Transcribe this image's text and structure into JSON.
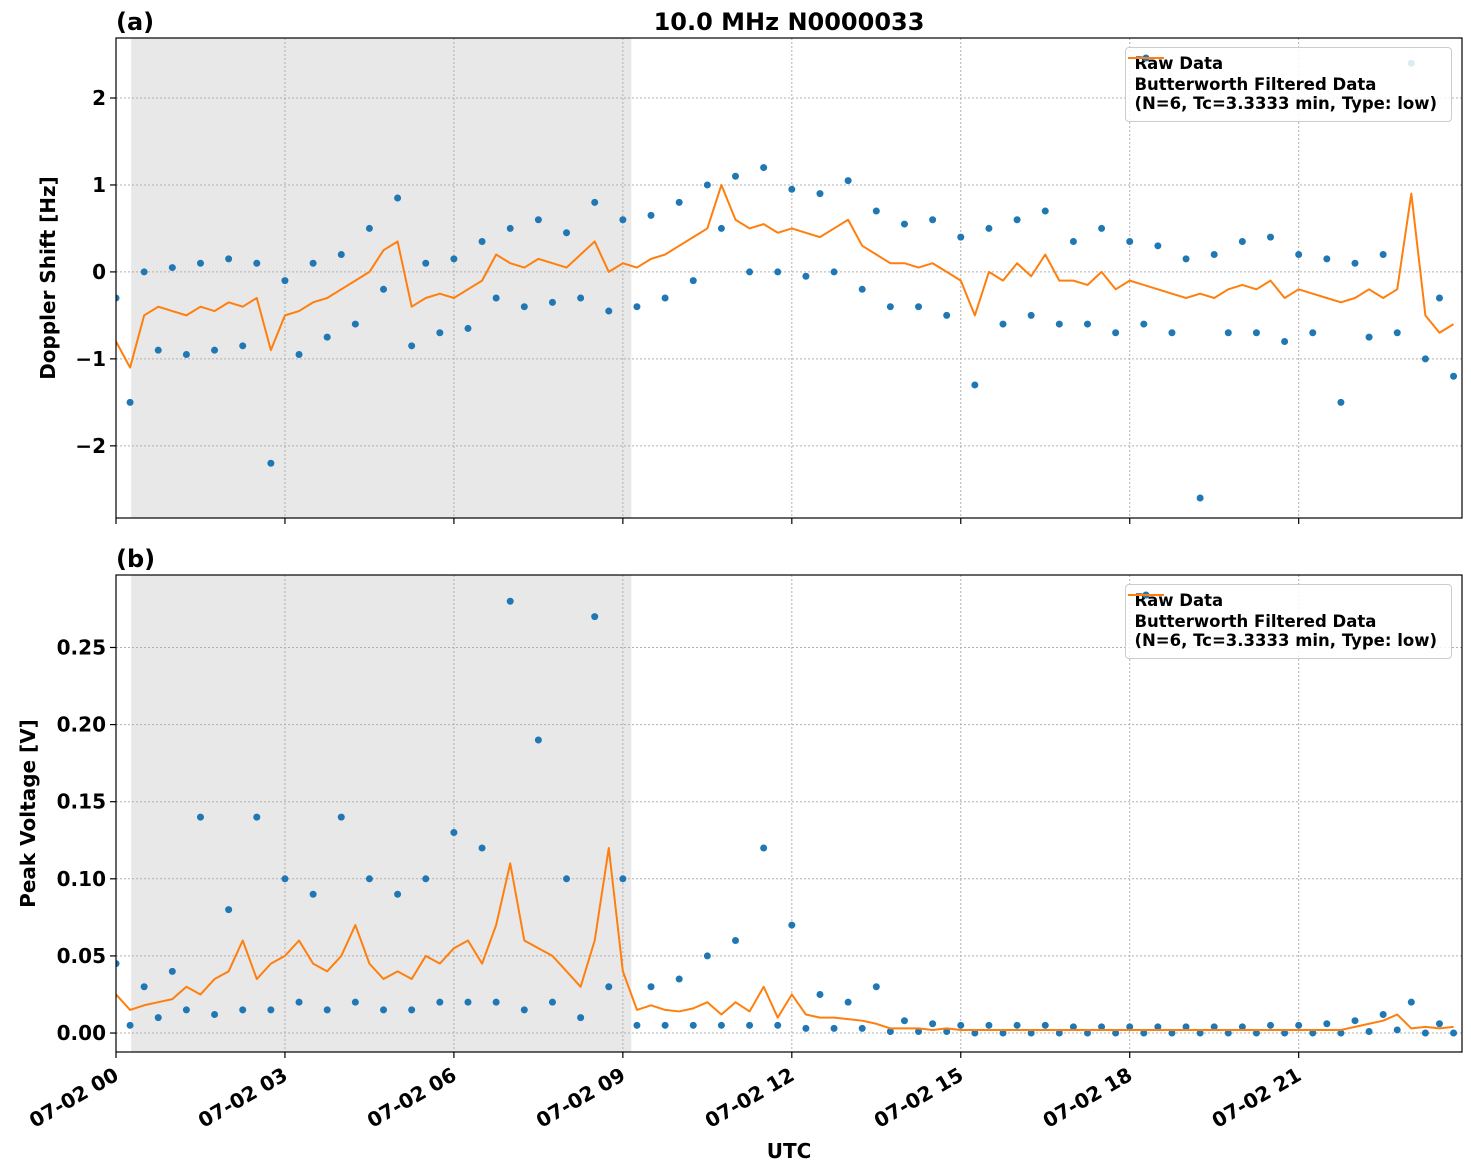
{
  "chart_data": [
    {
      "type": "scatter-line",
      "panel_label": "(a)",
      "title": "10.0 MHz N0000033",
      "ylabel": "Doppler Shift [Hz]",
      "xlim": [
        0,
        23.9
      ],
      "ylim": [
        -2.83,
        2.69
      ],
      "xticks": [
        0,
        3,
        6,
        9,
        12,
        15,
        18,
        21
      ],
      "yticks": [
        {
          "value": -2,
          "label": "−2"
        },
        {
          "value": -1,
          "label": "−1"
        },
        0,
        1,
        2
      ],
      "grid": true,
      "legend": "upper right",
      "shaded_span": [
        0.27,
        9.15
      ],
      "shade_color": "#e8e8e8",
      "x": [
        0,
        0.25,
        0.5,
        0.75,
        1,
        1.25,
        1.5,
        1.75,
        2,
        2.25,
        2.5,
        2.75,
        3,
        3.25,
        3.5,
        3.75,
        4,
        4.25,
        4.5,
        4.75,
        5,
        5.25,
        5.5,
        5.75,
        6,
        6.25,
        6.5,
        6.75,
        7,
        7.25,
        7.5,
        7.75,
        8,
        8.25,
        8.5,
        8.75,
        9,
        9.25,
        9.5,
        9.75,
        10,
        10.25,
        10.5,
        10.75,
        11,
        11.25,
        11.5,
        11.75,
        12,
        12.25,
        12.5,
        12.75,
        13,
        13.25,
        13.5,
        13.75,
        14,
        14.25,
        14.5,
        14.75,
        15,
        15.25,
        15.5,
        15.75,
        16,
        16.25,
        16.5,
        16.75,
        17,
        17.25,
        17.5,
        17.75,
        18,
        18.25,
        18.5,
        18.75,
        19,
        19.25,
        19.5,
        19.75,
        20,
        20.25,
        20.5,
        20.75,
        21,
        21.25,
        21.5,
        21.75,
        22,
        22.25,
        22.5,
        22.75,
        23,
        23.25,
        23.5,
        23.75
      ],
      "series": [
        {
          "name": "Raw Data",
          "kind": "scatter",
          "color": "#1f77b4",
          "values": [
            -0.3,
            -1.5,
            0.0,
            -0.9,
            0.05,
            -0.95,
            0.1,
            -0.9,
            0.15,
            -0.85,
            0.1,
            -2.2,
            -0.1,
            -0.95,
            0.1,
            -0.75,
            0.2,
            -0.6,
            0.5,
            -0.2,
            0.85,
            -0.85,
            0.1,
            -0.7,
            0.15,
            -0.65,
            0.35,
            -0.3,
            0.5,
            -0.4,
            0.6,
            -0.35,
            0.45,
            -0.3,
            0.8,
            -0.45,
            0.6,
            -0.4,
            0.65,
            -0.3,
            0.8,
            -0.1,
            1.0,
            0.5,
            1.1,
            0.0,
            1.2,
            0.0,
            0.95,
            -0.05,
            0.9,
            0.0,
            1.05,
            -0.2,
            0.7,
            -0.4,
            0.55,
            -0.4,
            0.6,
            -0.5,
            0.4,
            -1.3,
            0.5,
            -0.6,
            0.6,
            -0.5,
            0.7,
            -0.6,
            0.35,
            -0.6,
            0.5,
            -0.7,
            0.35,
            -0.6,
            0.3,
            -0.7,
            0.15,
            -2.6,
            0.2,
            -0.7,
            0.35,
            -0.7,
            0.4,
            -0.8,
            0.2,
            -0.7,
            0.15,
            -1.5,
            0.1,
            -0.75,
            0.2,
            -0.7,
            2.4,
            -1.0,
            -0.3,
            -1.2
          ]
        },
        {
          "name": "Butterworth Filtered Data\n(N=6, Tc=3.3333 min, Type: low)",
          "kind": "line",
          "color": "#ff7f0e",
          "values": [
            -0.8,
            -1.1,
            -0.5,
            -0.4,
            -0.45,
            -0.5,
            -0.4,
            -0.45,
            -0.35,
            -0.4,
            -0.3,
            -0.9,
            -0.5,
            -0.45,
            -0.35,
            -0.3,
            -0.2,
            -0.1,
            0.0,
            0.25,
            0.35,
            -0.4,
            -0.3,
            -0.25,
            -0.3,
            -0.2,
            -0.1,
            0.2,
            0.1,
            0.05,
            0.15,
            0.1,
            0.05,
            0.2,
            0.35,
            0.0,
            0.1,
            0.05,
            0.15,
            0.2,
            0.3,
            0.4,
            0.5,
            1.0,
            0.6,
            0.5,
            0.55,
            0.45,
            0.5,
            0.45,
            0.4,
            0.5,
            0.6,
            0.3,
            0.2,
            0.1,
            0.1,
            0.05,
            0.1,
            0.0,
            -0.1,
            -0.5,
            0.0,
            -0.1,
            0.1,
            -0.05,
            0.2,
            -0.1,
            -0.1,
            -0.15,
            0.0,
            -0.2,
            -0.1,
            -0.15,
            -0.2,
            -0.25,
            -0.3,
            -0.25,
            -0.3,
            -0.2,
            -0.15,
            -0.2,
            -0.1,
            -0.3,
            -0.2,
            -0.25,
            -0.3,
            -0.35,
            -0.3,
            -0.2,
            -0.3,
            -0.2,
            0.9,
            -0.5,
            -0.7,
            -0.6
          ]
        }
      ]
    },
    {
      "type": "scatter-line",
      "panel_label": "(b)",
      "ylabel": "Peak Voltage [V]",
      "xlabel": "UTC",
      "xlim": [
        0,
        23.9
      ],
      "ylim": [
        -0.0123,
        0.297
      ],
      "xticks": [
        {
          "value": 0,
          "label": "07-02 00"
        },
        {
          "value": 3,
          "label": "07-02 03"
        },
        {
          "value": 6,
          "label": "07-02 06"
        },
        {
          "value": 9,
          "label": "07-02 09"
        },
        {
          "value": 12,
          "label": "07-02 12"
        },
        {
          "value": 15,
          "label": "07-02 15"
        },
        {
          "value": 18,
          "label": "07-02 18"
        },
        {
          "value": 21,
          "label": "07-02 21"
        }
      ],
      "yticks": [
        {
          "value": 0,
          "label": "0.00"
        },
        0.05,
        {
          "value": 0.1,
          "label": "0.10"
        },
        0.15,
        {
          "value": 0.2,
          "label": "0.20"
        },
        0.25
      ],
      "grid": true,
      "legend": "upper right",
      "shaded_span": [
        0.27,
        9.15
      ],
      "shade_color": "#e8e8e8",
      "x": [
        0,
        0.25,
        0.5,
        0.75,
        1,
        1.25,
        1.5,
        1.75,
        2,
        2.25,
        2.5,
        2.75,
        3,
        3.25,
        3.5,
        3.75,
        4,
        4.25,
        4.5,
        4.75,
        5,
        5.25,
        5.5,
        5.75,
        6,
        6.25,
        6.5,
        6.75,
        7,
        7.25,
        7.5,
        7.75,
        8,
        8.25,
        8.5,
        8.75,
        9,
        9.25,
        9.5,
        9.75,
        10,
        10.25,
        10.5,
        10.75,
        11,
        11.25,
        11.5,
        11.75,
        12,
        12.25,
        12.5,
        12.75,
        13,
        13.25,
        13.5,
        13.75,
        14,
        14.25,
        14.5,
        14.75,
        15,
        15.25,
        15.5,
        15.75,
        16,
        16.25,
        16.5,
        16.75,
        17,
        17.25,
        17.5,
        17.75,
        18,
        18.25,
        18.5,
        18.75,
        19,
        19.25,
        19.5,
        19.75,
        20,
        20.25,
        20.5,
        20.75,
        21,
        21.25,
        21.5,
        21.75,
        22,
        22.25,
        22.5,
        22.75,
        23,
        23.25,
        23.5,
        23.75
      ],
      "series": [
        {
          "name": "Raw Data",
          "kind": "scatter",
          "color": "#1f77b4",
          "values": [
            0.045,
            0.005,
            0.03,
            0.01,
            0.04,
            0.015,
            0.14,
            0.012,
            0.08,
            0.015,
            0.14,
            0.015,
            0.1,
            0.02,
            0.09,
            0.015,
            0.14,
            0.02,
            0.1,
            0.015,
            0.09,
            0.015,
            0.1,
            0.02,
            0.13,
            0.02,
            0.12,
            0.02,
            0.28,
            0.015,
            0.19,
            0.02,
            0.1,
            0.01,
            0.27,
            0.03,
            0.1,
            0.005,
            0.03,
            0.005,
            0.035,
            0.005,
            0.05,
            0.005,
            0.06,
            0.005,
            0.12,
            0.005,
            0.07,
            0.003,
            0.025,
            0.003,
            0.02,
            0.003,
            0.03,
            0.001,
            0.008,
            0.001,
            0.006,
            0.001,
            0.005,
            0.0,
            0.005,
            0.0,
            0.005,
            0.0,
            0.005,
            0.0,
            0.004,
            0.0,
            0.004,
            0.0,
            0.004,
            0.0,
            0.004,
            0.0,
            0.004,
            0.0,
            0.004,
            0.0,
            0.004,
            0.0,
            0.005,
            0.0,
            0.005,
            0.0,
            0.006,
            0.0,
            0.008,
            0.001,
            0.012,
            0.002,
            0.02,
            0.0,
            0.006,
            0.0
          ]
        },
        {
          "name": "Butterworth Filtered Data\n(N=6, Tc=3.3333 min, Type: low)",
          "kind": "line",
          "color": "#ff7f0e",
          "values": [
            0.025,
            0.015,
            0.018,
            0.02,
            0.022,
            0.03,
            0.025,
            0.035,
            0.04,
            0.06,
            0.035,
            0.045,
            0.05,
            0.06,
            0.045,
            0.04,
            0.05,
            0.07,
            0.045,
            0.035,
            0.04,
            0.035,
            0.05,
            0.045,
            0.055,
            0.06,
            0.045,
            0.07,
            0.11,
            0.06,
            0.055,
            0.05,
            0.04,
            0.03,
            0.06,
            0.12,
            0.04,
            0.015,
            0.018,
            0.015,
            0.014,
            0.016,
            0.02,
            0.012,
            0.02,
            0.014,
            0.03,
            0.01,
            0.025,
            0.012,
            0.01,
            0.01,
            0.009,
            0.008,
            0.006,
            0.003,
            0.003,
            0.003,
            0.002,
            0.003,
            0.002,
            0.002,
            0.002,
            0.002,
            0.002,
            0.002,
            0.002,
            0.002,
            0.002,
            0.002,
            0.002,
            0.002,
            0.002,
            0.002,
            0.002,
            0.002,
            0.002,
            0.002,
            0.002,
            0.002,
            0.002,
            0.002,
            0.002,
            0.002,
            0.002,
            0.002,
            0.002,
            0.002,
            0.004,
            0.006,
            0.008,
            0.012,
            0.003,
            0.004,
            0.003,
            0.004
          ]
        }
      ]
    }
  ]
}
